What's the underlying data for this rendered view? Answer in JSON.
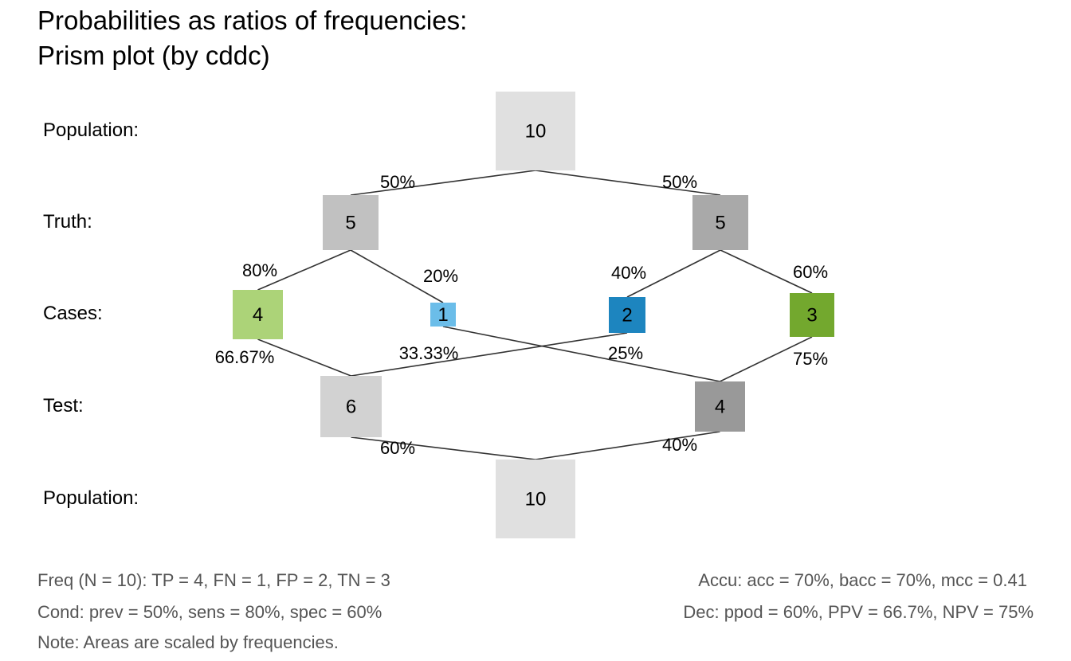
{
  "title": {
    "line1": "Probabilities as ratios of frequencies:",
    "line2": "Prism plot (by cddc)"
  },
  "row_labels": [
    "Population:",
    "Truth:",
    "Cases:",
    "Test:",
    "Population:"
  ],
  "nodes": [
    {
      "id": "pop_top",
      "label": "10",
      "color": "#e0e0e0"
    },
    {
      "id": "truth_cond_true",
      "label": "5",
      "color": "#c1c1c1"
    },
    {
      "id": "truth_cond_false",
      "label": "5",
      "color": "#a9a9a9"
    },
    {
      "id": "case_hi",
      "label": "4",
      "color": "#acd378"
    },
    {
      "id": "case_mi",
      "label": "1",
      "color": "#6bbde9"
    },
    {
      "id": "case_fa",
      "label": "2",
      "color": "#1d85bf"
    },
    {
      "id": "case_cr",
      "label": "3",
      "color": "#73a82e"
    },
    {
      "id": "test_pos",
      "label": "6",
      "color": "#d2d2d2"
    },
    {
      "id": "test_neg",
      "label": "4",
      "color": "#999999"
    },
    {
      "id": "pop_bot",
      "label": "10",
      "color": "#e0e0e0"
    }
  ],
  "edges": [
    {
      "from": "pop_top",
      "to": "truth_cond_true",
      "label": "50%"
    },
    {
      "from": "pop_top",
      "to": "truth_cond_false",
      "label": "50%"
    },
    {
      "from": "truth_cond_true",
      "to": "case_hi",
      "label": "80%"
    },
    {
      "from": "truth_cond_true",
      "to": "case_mi",
      "label": "20%"
    },
    {
      "from": "truth_cond_false",
      "to": "case_fa",
      "label": "40%"
    },
    {
      "from": "truth_cond_false",
      "to": "case_cr",
      "label": "60%"
    },
    {
      "from": "case_hi",
      "to": "test_pos",
      "label": "66.67%"
    },
    {
      "from": "case_fa",
      "to": "test_pos",
      "label": "33.33%"
    },
    {
      "from": "case_mi",
      "to": "test_neg",
      "label": "25%"
    },
    {
      "from": "case_cr",
      "to": "test_neg",
      "label": "75%"
    },
    {
      "from": "test_pos",
      "to": "pop_bot",
      "label": "60%"
    },
    {
      "from": "test_neg",
      "to": "pop_bot",
      "label": "40%"
    }
  ],
  "footer": {
    "freq": "Freq (N = 10):  TP = 4, FN = 1, FP = 2, TN = 3",
    "cond": "Cond:  prev = 50%, sens = 80%, spec = 60%",
    "note": "Note:  Areas are scaled by frequencies.",
    "accu": "Accu:  acc = 70%, bacc = 70%, mcc = 0.41",
    "dec": "Dec:  ppod = 60%, PPV = 66.7%, NPV = 75%"
  },
  "colors": {
    "line": "#333333",
    "footer_text": "#555555"
  }
}
